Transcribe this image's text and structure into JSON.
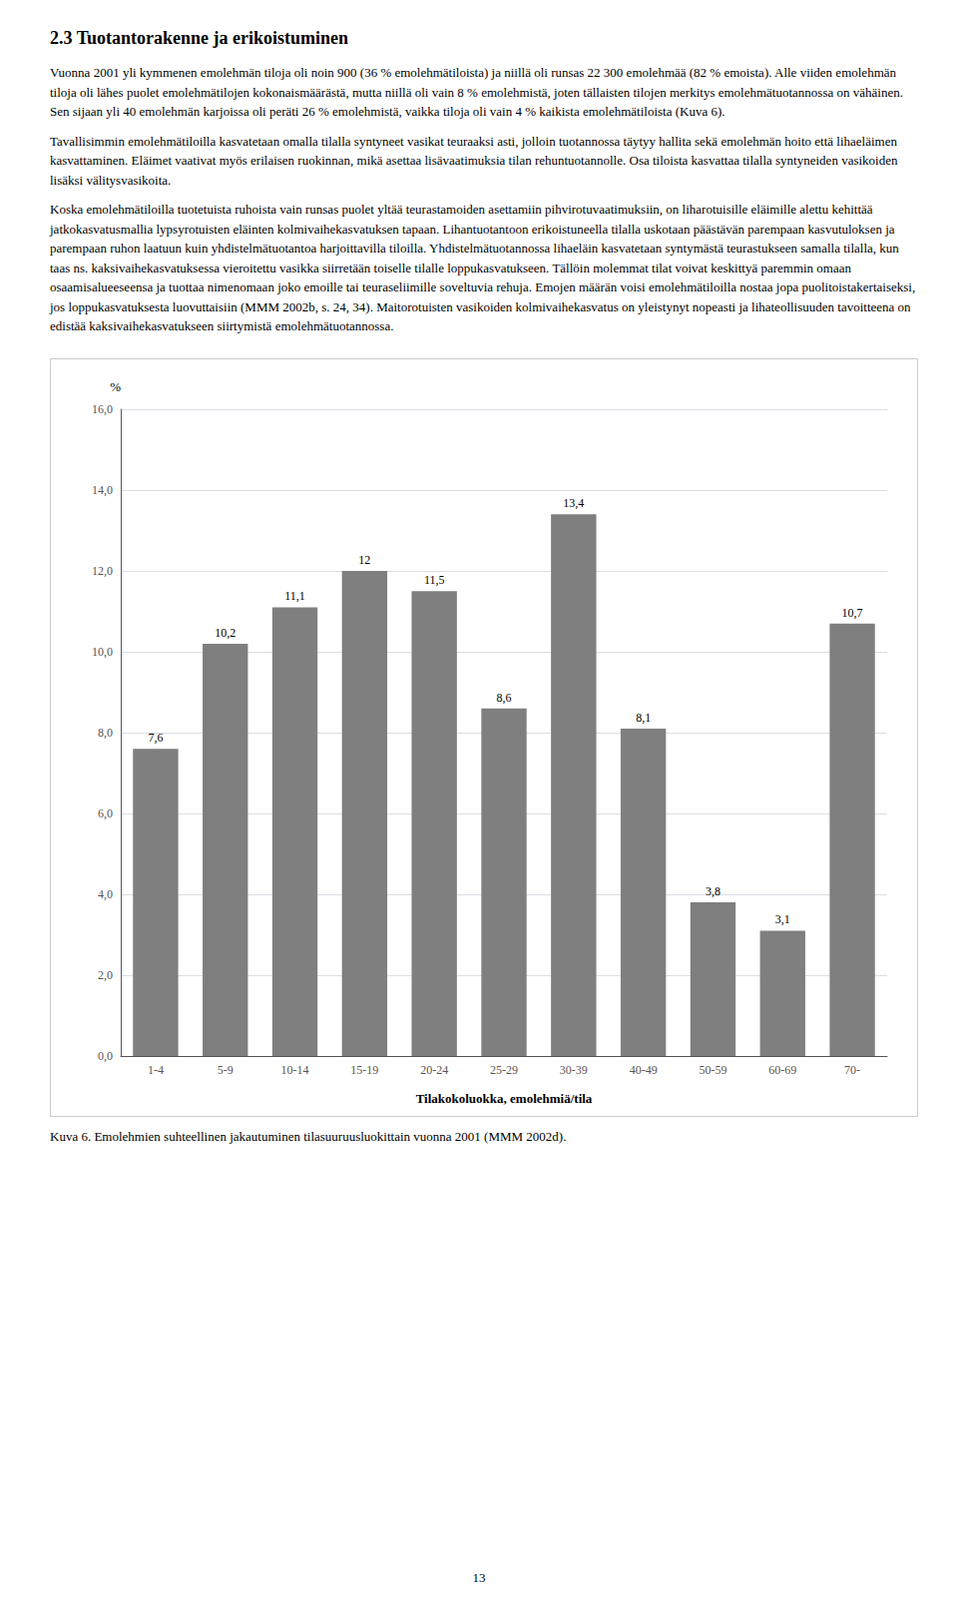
{
  "title": "2.3 Tuotantorakenne ja erikoistuminen",
  "paragraphs": [
    "Vuonna 2001 yli kymmenen emolehmän tiloja oli noin 900 (36 % emolehmätiloista) ja niillä oli runsas 22 300 emolehmää (82 % emoista). Alle viiden emolehmän tiloja oli lähes puolet emolehmätilojen kokonaismäärästä, mutta niillä oli vain 8 % emolehmistä, joten tällaisten tilojen merkitys emolehmätuotannossa on vähäinen. Sen sijaan yli 40 emolehmän karjoissa oli peräti 26 % emolehmistä, vaikka tiloja oli vain 4 % kaikista emolehmätiloista (Kuva 6).",
    "Tavallisimmin emolehmätiloilla kasvatetaan omalla tilalla syntyneet vasikat teuraaksi asti, jolloin tuotannossa täytyy hallita sekä emolehmän hoito että lihaeläimen kasvattaminen. Eläimet vaativat myös erilaisen ruokinnan, mikä asettaa lisävaatimuksia tilan rehuntuotannolle. Osa tiloista kasvattaa tilalla syntyneiden vasikoiden lisäksi välitysvasikoita.",
    "Koska emolehmätiloilla tuotetuista ruhoista vain runsas puolet yltää teurastamoiden asettamiin pihvirotuvaatimuksiin, on liharotuisille eläimille alettu kehittää jatkokasvatusmallia lypsyrotuisten eläinten kolmivaihekasvatuksen tapaan. Lihantuotantoon erikoistuneella tilalla uskotaan päästävän parempaan kasvutuloksen ja parempaan ruhon laatuun kuin yhdistelmätuotantoa harjoittavilla tiloilla. Yhdistelmätuotannossa lihaeläin kasvatetaan syntymästä teurastukseen samalla tilalla, kun taas ns. kaksivaihekasvatuksessa vieroitettu vasikka siirretään toiselle tilalle loppukasvatukseen. Tällöin molemmat tilat voivat keskittyä paremmin omaan osaamisalueeseensa ja tuottaa nimenomaan joko emoille tai teuraseliimille soveltuvia rehuja. Emojen määrän voisi emolehmätiloilla nostaa jopa puolitoistakertaiseksi, jos loppukasvatuksesta luovuttaisiin (MMM 2002b, s. 24, 34). Maitorotuisten vasikoiden kolmivaihekasvatus on yleistynyt nopeasti ja lihateollisuuden tavoitteena on edistää kaksivaihekasvatukseen siirtymistä emolehmätuotannossa."
  ],
  "caption": "Kuva 6. Emolehmien suhteellinen jakautuminen tilasuuruusluokittain vuonna 2001 (MMM 2002d).",
  "page_number": "13",
  "chart_data": {
    "type": "bar",
    "categories": [
      "1-4",
      "5-9",
      "10-14",
      "15-19",
      "20-24",
      "25-29",
      "30-39",
      "40-49",
      "50-59",
      "60-69",
      "70-"
    ],
    "values": [
      7.6,
      10.2,
      11.1,
      12.0,
      11.5,
      8.6,
      13.4,
      8.1,
      3.8,
      3.1,
      10.7
    ],
    "value_labels": [
      "7,6",
      "10,2",
      "11,1",
      "12",
      "11,5",
      "8,6",
      "13,4",
      "8,1",
      "3,8",
      "3,1",
      "10,7"
    ],
    "data_labels": true,
    "color": "#7f7f7f",
    "xlabel": "Tilakokoluokka, emolehmiä/tila",
    "ylabel": "%",
    "ylim": [
      0,
      16.0
    ],
    "yticks": [
      {
        "value": 0,
        "label": "0,0"
      },
      {
        "value": 2,
        "label": "2,0"
      },
      {
        "value": 4,
        "label": "4,0"
      },
      {
        "value": 6,
        "label": "6,0"
      },
      {
        "value": 8,
        "label": "8,0"
      },
      {
        "value": 10,
        "label": "10,0"
      },
      {
        "value": 12,
        "label": "12,0"
      },
      {
        "value": 14,
        "label": "14,0"
      },
      {
        "value": 16,
        "label": "16,0"
      }
    ],
    "grid": true
  }
}
